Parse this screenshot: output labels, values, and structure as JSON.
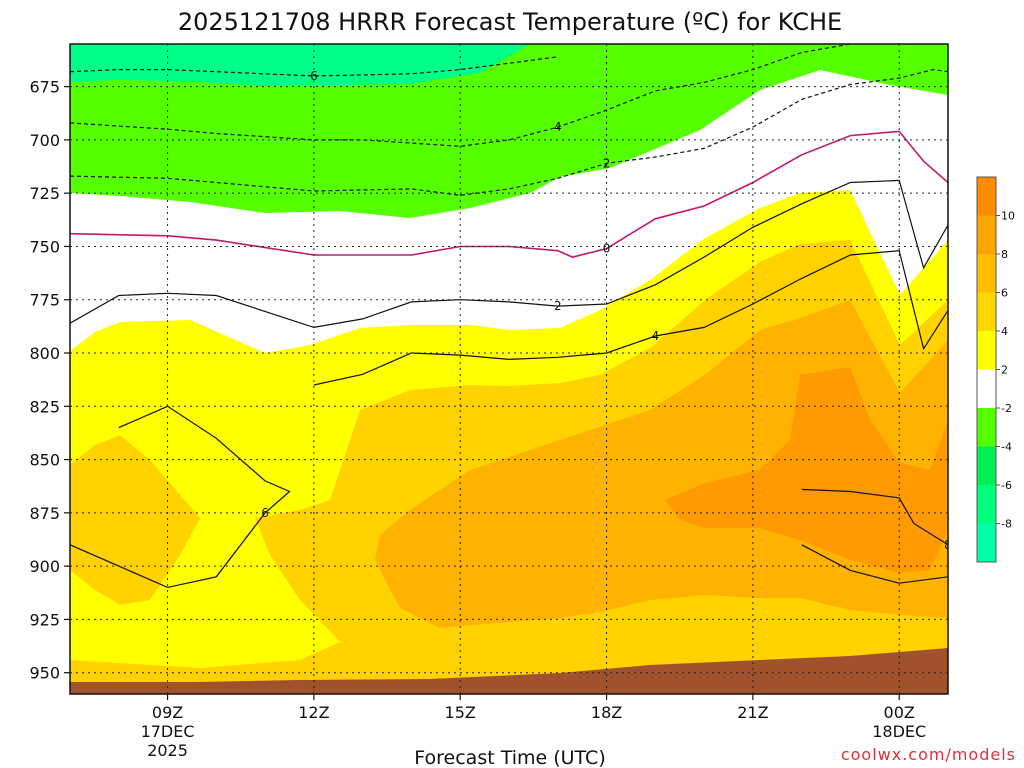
{
  "chart_data": {
    "type": "contour",
    "title": "2025121708 HRRR Forecast Temperature (ºC) for KCHE",
    "xlabel": "Forecast Time (UTC)",
    "ylabel": "",
    "y_axis": {
      "ticks": [
        675,
        700,
        725,
        750,
        775,
        800,
        825,
        850,
        875,
        900,
        925,
        950
      ],
      "range": [
        655,
        960
      ],
      "inverted": true
    },
    "x_axis": {
      "range_hours": [
        7,
        25
      ],
      "ticks": [
        {
          "hour": 9,
          "lines": [
            "09Z",
            "17DEC",
            "2025"
          ]
        },
        {
          "hour": 12,
          "lines": [
            "12Z"
          ]
        },
        {
          "hour": 15,
          "lines": [
            "15Z"
          ]
        },
        {
          "hour": 18,
          "lines": [
            "18Z"
          ]
        },
        {
          "hour": 21,
          "lines": [
            "21Z"
          ]
        },
        {
          "hour": 24,
          "lines": [
            "00Z",
            "18DEC"
          ]
        }
      ]
    },
    "colorbar": {
      "ticks": [
        "10",
        "8",
        "6",
        "4",
        "2",
        "-2",
        "-4",
        "-6",
        "-8"
      ],
      "colors": [
        "#ff8c00",
        "#ffa500",
        "#ffbf00",
        "#ffd700",
        "#ffff00",
        "#ffffff",
        "#55ff00",
        "#00ee55",
        "#00ff7f",
        "#00ffaa"
      ]
    },
    "fill_colors": {
      "warm8": "#ff9a00",
      "warm6": "#ffb200",
      "warm4": "#ffd200",
      "warm2": "#ffff00",
      "neutral": "#ffffff",
      "cold2": "#55ff00",
      "cold4": "#33ee33",
      "cold6": "#00ff88",
      "terrain": "#a0522d",
      "zero_line": "#c0196e"
    },
    "isotherms": [
      {
        "value": "6",
        "label": "6",
        "points": [
          [
            7,
            668
          ],
          [
            8,
            667
          ],
          [
            9,
            667
          ],
          [
            10,
            668
          ],
          [
            12,
            670
          ],
          [
            14,
            669
          ],
          [
            15,
            667
          ],
          [
            16,
            664
          ],
          [
            17,
            661
          ]
        ]
      },
      {
        "value": "4",
        "label": "4",
        "points": [
          [
            7,
            692
          ],
          [
            9,
            695
          ],
          [
            10,
            697
          ],
          [
            12,
            700
          ],
          [
            13,
            700
          ],
          [
            15,
            703
          ],
          [
            16,
            700
          ],
          [
            17,
            694
          ],
          [
            18,
            686
          ],
          [
            19,
            677
          ],
          [
            20,
            673
          ],
          [
            21,
            667
          ],
          [
            22,
            659
          ],
          [
            23,
            655
          ]
        ]
      },
      {
        "value": "2",
        "label": "2",
        "points": [
          [
            7,
            717
          ],
          [
            9,
            718
          ],
          [
            10,
            720
          ],
          [
            12,
            724
          ],
          [
            14,
            723
          ],
          [
            15,
            726
          ],
          [
            16,
            723
          ],
          [
            17,
            718
          ],
          [
            18,
            711
          ],
          [
            19,
            708
          ],
          [
            20,
            704
          ],
          [
            21,
            694
          ],
          [
            22,
            681
          ],
          [
            23,
            674
          ],
          [
            24,
            671
          ],
          [
            24.7,
            667
          ],
          [
            25,
            668
          ]
        ]
      },
      {
        "value": "0",
        "label": "0",
        "points": [
          [
            7,
            744
          ],
          [
            9,
            745
          ],
          [
            10,
            747
          ],
          [
            12,
            754
          ],
          [
            14,
            754
          ],
          [
            15,
            750
          ],
          [
            16,
            750
          ],
          [
            17,
            752
          ],
          [
            17.3,
            755
          ],
          [
            18,
            751
          ],
          [
            19,
            737
          ],
          [
            20,
            731
          ],
          [
            21,
            720
          ],
          [
            22,
            707
          ],
          [
            23,
            698
          ],
          [
            24,
            696
          ],
          [
            24.5,
            710
          ],
          [
            25,
            720
          ]
        ]
      },
      {
        "value": "-2",
        "label": "2",
        "points": [
          [
            7,
            786
          ],
          [
            8,
            773
          ],
          [
            9,
            772
          ],
          [
            10,
            773
          ],
          [
            12,
            788
          ],
          [
            13,
            784
          ],
          [
            14,
            776
          ],
          [
            15,
            775
          ],
          [
            16,
            776
          ],
          [
            17,
            778
          ],
          [
            18,
            777
          ],
          [
            19,
            768
          ],
          [
            20,
            755
          ],
          [
            21,
            741
          ],
          [
            22,
            730
          ],
          [
            23,
            720
          ],
          [
            24,
            719
          ],
          [
            24.5,
            760
          ],
          [
            25,
            740
          ]
        ]
      },
      {
        "value": "-4",
        "label": "4",
        "points": [
          [
            12,
            815
          ],
          [
            13,
            810
          ],
          [
            14,
            800
          ],
          [
            15,
            801
          ],
          [
            16,
            803
          ],
          [
            17,
            802
          ],
          [
            18,
            800
          ],
          [
            19,
            792
          ],
          [
            20,
            788
          ],
          [
            21,
            777
          ],
          [
            22,
            765
          ],
          [
            23,
            754
          ],
          [
            24,
            752
          ],
          [
            24.5,
            798
          ],
          [
            25,
            780
          ]
        ]
      },
      {
        "value": "-6",
        "label": "6",
        "points": [
          [
            8,
            835
          ],
          [
            9,
            825
          ],
          [
            10,
            840
          ],
          [
            11,
            860
          ],
          [
            11.5,
            865
          ],
          [
            11,
            875
          ],
          [
            10,
            905
          ],
          [
            9,
            910
          ],
          [
            8,
            900
          ],
          [
            7,
            890
          ]
        ]
      },
      {
        "value": "-8",
        "label": "8",
        "points": [
          [
            22,
            864
          ],
          [
            23,
            865
          ],
          [
            24,
            868
          ],
          [
            24.3,
            880
          ],
          [
            25,
            890
          ],
          [
            25,
            905
          ],
          [
            24,
            908
          ],
          [
            23,
            902
          ],
          [
            22,
            890
          ]
        ]
      }
    ]
  }
}
